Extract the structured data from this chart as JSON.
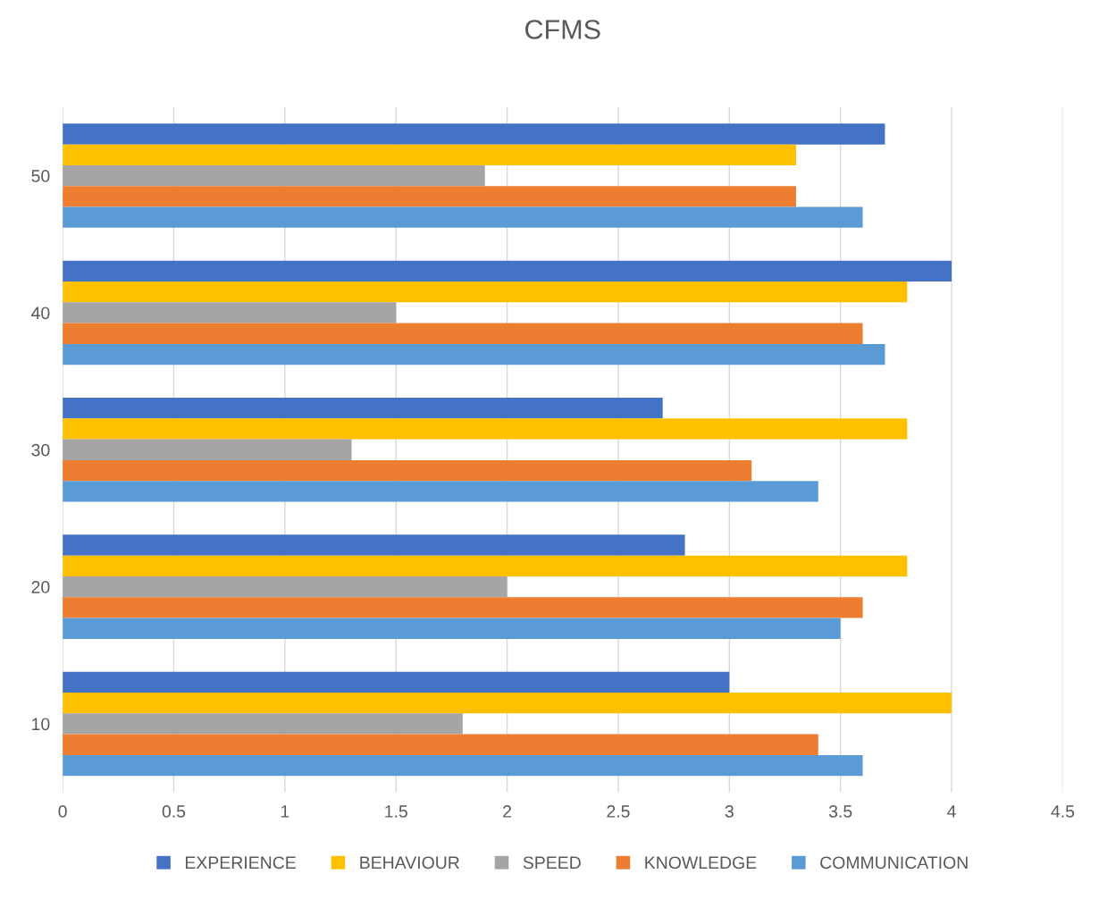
{
  "chart_data": {
    "type": "bar",
    "orientation": "horizontal",
    "title": "CFMS",
    "categories": [
      "50",
      "40",
      "30",
      "20",
      "10"
    ],
    "series": [
      {
        "name": "EXPERIENCE",
        "color": "#4472c4",
        "values": [
          3.7,
          4.0,
          2.7,
          2.8,
          3.0
        ]
      },
      {
        "name": "BEHAVIOUR",
        "color": "#ffc000",
        "values": [
          3.3,
          3.8,
          3.8,
          3.8,
          4.0
        ]
      },
      {
        "name": "SPEED",
        "color": "#a5a5a5",
        "values": [
          1.9,
          1.5,
          1.3,
          2.0,
          1.8
        ]
      },
      {
        "name": "KNOWLEDGE",
        "color": "#ed7d31",
        "values": [
          3.3,
          3.6,
          3.1,
          3.6,
          3.4
        ]
      },
      {
        "name": "COMMUNICATION",
        "color": "#5b9bd5",
        "values": [
          3.6,
          3.7,
          3.4,
          3.5,
          3.6
        ]
      }
    ],
    "xlim": [
      0,
      4.5
    ],
    "xticks": [
      0,
      0.5,
      1,
      1.5,
      2,
      2.5,
      3,
      3.5,
      4,
      4.5
    ],
    "grid": "x",
    "legend": "bottom"
  }
}
